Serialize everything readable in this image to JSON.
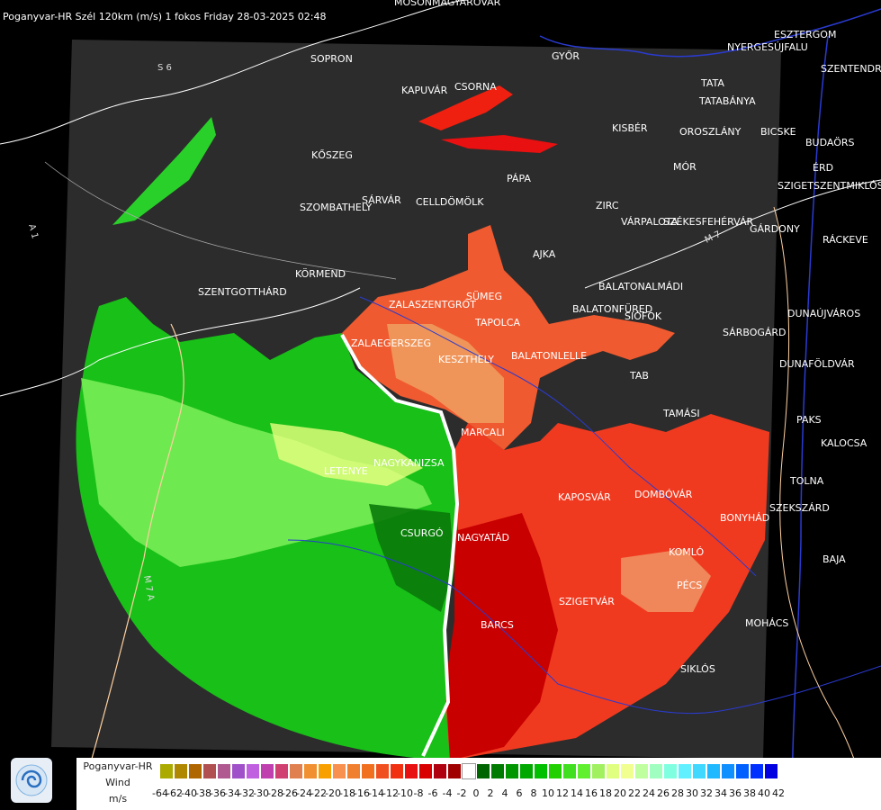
{
  "header": {
    "title": "Poganyvar-HR Szél 120km (m/s) 1 fokos Friday 28-03-2025 02:48"
  },
  "map": {
    "cities": [
      "MOSONMAGYARÓVÁR",
      "SOPRON",
      "KAPUVÁR",
      "CSORNA",
      "GYŐR",
      "TATA",
      "TATABÁNYA",
      "ESZTERGOM",
      "NYERGESÚJFALU",
      "SZENTENDRE",
      "KISBÉR",
      "OROSZLÁNY",
      "BICSKE",
      "BUDAÖRS",
      "KŐSZEG",
      "MÓR",
      "ÉRD",
      "SZIGETSZENTMIKLÓS",
      "PÁPA",
      "SZOMBATHELY",
      "SÁRVÁR",
      "CELLDÖMÖLK",
      "ZIRC",
      "VÁRPALOTA",
      "SZÉKESFEHÉRVÁR",
      "GÁRDONY",
      "RÁCKEVE",
      "AJKA",
      "KÖRMEND",
      "SZENTGOTTHÁRD",
      "BALATONALMÁDI",
      "ZALAEGERSZEG",
      "ZALASZENTGRÓT",
      "SÜMEG",
      "TAPOLCA",
      "BALATONFÜRED",
      "SIÓFOK",
      "DUNAÚJVÁROS",
      "SÁRBOGÁRD",
      "KESZTHELY",
      "BALATONLELLE",
      "TAB",
      "DUNAFÖLDVÁR",
      "TAMÁSI",
      "MARCALI",
      "PAKS",
      "KALOCSA",
      "LETENYE",
      "NAGYKANIZSA",
      "KAPOSVÁR",
      "DOMBÓVÁR",
      "TOLNA",
      "SZEKSZÁRD",
      "BONYHÁD",
      "CSURGÓ",
      "NAGYATÁD",
      "KOMLÓ",
      "BAJA",
      "PÉCS",
      "SZIGETVÁR",
      "MOHÁCS",
      "BARCS",
      "SIKLÓS"
    ],
    "roads": [
      "S 6",
      "A 1",
      "M 7",
      "M 7 A"
    ]
  },
  "legend": {
    "title_lines": [
      "Poganyvar-HR",
      "Wind",
      "m/s"
    ],
    "ticks": [
      "-64",
      "-62",
      "-40",
      "-38",
      "-36",
      "-34",
      "-32",
      "-30",
      "-28",
      "-26",
      "-24",
      "-22",
      "-20",
      "-18",
      "-16",
      "-14",
      "-12",
      "-10",
      "-8",
      "-6",
      "-4",
      "-2",
      "0",
      "2",
      "4",
      "6",
      "8",
      "10",
      "12",
      "14",
      "16",
      "18",
      "20",
      "22",
      "24",
      "26",
      "28",
      "30",
      "32",
      "34",
      "36",
      "38",
      "40",
      "42"
    ],
    "colors": [
      "#aaaa00",
      "#b08800",
      "#b06600",
      "#b05050",
      "#b05890",
      "#a050c8",
      "#c060e0",
      "#c040b0",
      "#d04070",
      "#e08050",
      "#f09030",
      "#f8a000",
      "#f89050",
      "#f08030",
      "#f07020",
      "#f05020",
      "#f03010",
      "#e81010",
      "#d80000",
      "#b00010",
      "#a00000",
      "#ffffff",
      "#006400",
      "#007a00",
      "#009600",
      "#00a800",
      "#00c000",
      "#20d000",
      "#40e020",
      "#60f030",
      "#a0f060",
      "#e0ff80",
      "#f0ff90",
      "#c0ffa0",
      "#a0ffc0",
      "#80ffe0",
      "#60f0ff",
      "#40d8ff",
      "#20b8ff",
      "#1090ff",
      "#0060ff",
      "#0030ff",
      "#0000e0"
    ]
  }
}
